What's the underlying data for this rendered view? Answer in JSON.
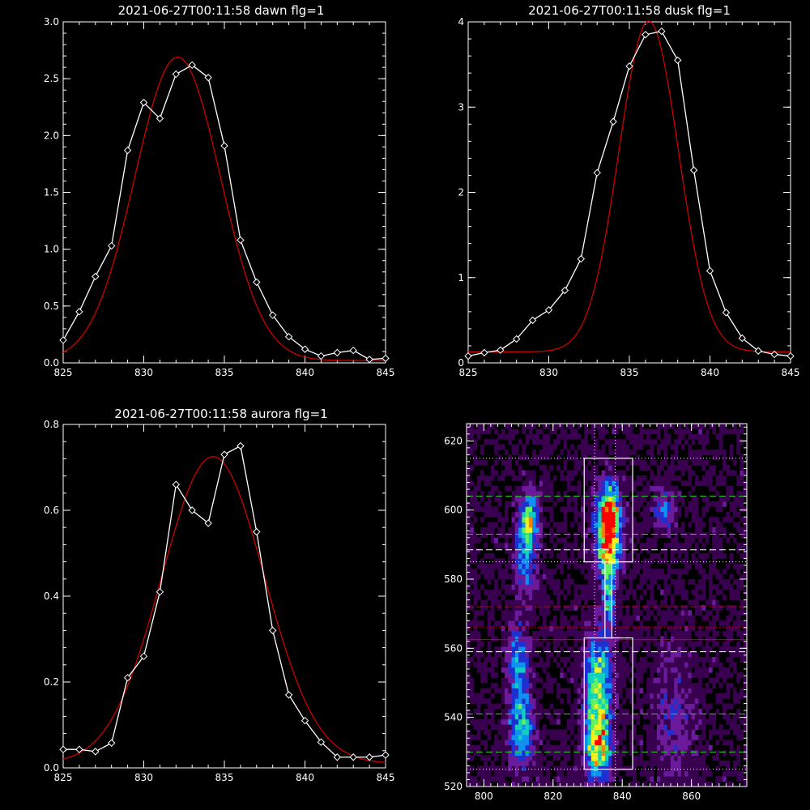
{
  "chart_data": [
    {
      "type": "line",
      "title": "2021-06-27T00:11:58 dawn flg=1",
      "xlabel": "",
      "ylabel": "",
      "xlim": [
        825,
        845
      ],
      "ylim": [
        0,
        3.0
      ],
      "xticks": [
        825,
        830,
        835,
        840,
        845
      ],
      "yticks": [
        0.0,
        0.5,
        1.0,
        1.5,
        2.0,
        2.5,
        3.0
      ],
      "ytick_labels": [
        "0.0",
        "0.5",
        "1.0",
        "1.5",
        "2.0",
        "2.5",
        "3.0"
      ],
      "grid": false,
      "series": [
        {
          "name": "",
          "color": "#ffffff",
          "marker": "diamond",
          "x": [
            825,
            826,
            827,
            828,
            829,
            830,
            831,
            832,
            833,
            834,
            835,
            836,
            837,
            838,
            839,
            840,
            841,
            842,
            843,
            844,
            845
          ],
          "values": [
            0.2,
            0.45,
            0.76,
            1.03,
            1.87,
            2.29,
            2.15,
            2.54,
            2.62,
            2.51,
            1.91,
            1.08,
            0.71,
            0.42,
            0.23,
            0.12,
            0.06,
            0.09,
            0.11,
            0.03,
            0.04
          ]
        },
        {
          "name": "",
          "color": "#cc0000",
          "marker": "none",
          "fit": "gaussian",
          "amplitude": 2.67,
          "center": 832.1,
          "sigma": 2.65,
          "offset": 0.02
        }
      ]
    },
    {
      "type": "line",
      "title": "2021-06-27T00:11:58 dusk flg=1",
      "xlabel": "",
      "ylabel": "",
      "xlim": [
        825,
        845
      ],
      "ylim": [
        0,
        4.0
      ],
      "xticks": [
        825,
        830,
        835,
        840,
        845
      ],
      "yticks": [
        0,
        1,
        2,
        3,
        4
      ],
      "ytick_labels": [
        "0",
        "1",
        "2",
        "3",
        "4"
      ],
      "grid": false,
      "series": [
        {
          "name": "",
          "color": "#ffffff",
          "marker": "diamond",
          "x": [
            825,
            826,
            827,
            828,
            829,
            830,
            831,
            832,
            833,
            834,
            835,
            836,
            837,
            838,
            839,
            840,
            841,
            842,
            843,
            844,
            845
          ],
          "values": [
            0.08,
            0.12,
            0.15,
            0.28,
            0.5,
            0.62,
            0.85,
            1.22,
            2.23,
            2.83,
            3.48,
            3.85,
            3.89,
            3.55,
            2.26,
            1.08,
            0.59,
            0.29,
            0.14,
            0.1,
            0.08
          ]
        },
        {
          "name": "",
          "color": "#cc0000",
          "marker": "none",
          "fit": "gaussian",
          "amplitude": 3.88,
          "center": 836.2,
          "sigma": 1.85,
          "offset": 0.13
        }
      ]
    },
    {
      "type": "line",
      "title": "2021-06-27T00:11:58 aurora flg=1",
      "xlabel": "",
      "ylabel": "",
      "xlim": [
        825,
        845
      ],
      "ylim": [
        0,
        0.8
      ],
      "xticks": [
        825,
        830,
        835,
        840,
        845
      ],
      "yticks": [
        0.0,
        0.2,
        0.4,
        0.6,
        0.8
      ],
      "ytick_labels": [
        "0.0",
        "0.2",
        "0.4",
        "0.6",
        "0.8"
      ],
      "grid": false,
      "series": [
        {
          "name": "",
          "color": "#ffffff",
          "marker": "diamond",
          "x": [
            825,
            826,
            827,
            828,
            829,
            830,
            831,
            832,
            833,
            834,
            835,
            836,
            837,
            838,
            839,
            840,
            841,
            842,
            843,
            844,
            845
          ],
          "values": [
            0.043,
            0.043,
            0.038,
            0.058,
            0.21,
            0.26,
            0.41,
            0.66,
            0.6,
            0.57,
            0.73,
            0.75,
            0.55,
            0.32,
            0.17,
            0.11,
            0.06,
            0.025,
            0.025,
            0.025,
            0.03
          ]
        },
        {
          "name": "",
          "color": "#cc0000",
          "marker": "none",
          "fit": "gaussian",
          "amplitude": 0.715,
          "center": 834.3,
          "sigma": 3.2,
          "offset": 0.01
        }
      ]
    },
    {
      "type": "heatmap",
      "title": "",
      "xlabel": "",
      "ylabel": "",
      "xlim": [
        795,
        876
      ],
      "ylim": [
        520,
        625
      ],
      "xticks": [
        800,
        820,
        840,
        860
      ],
      "yticks": [
        520,
        540,
        560,
        580,
        600,
        620
      ],
      "grid": false,
      "colormap": [
        "#000000",
        "#3a0050",
        "#6a1a9a",
        "#2030d0",
        "#1090f0",
        "#10d0c0",
        "#60f060",
        "#f0f020",
        "#ff8000",
        "#ff0000"
      ],
      "intensity_sources": [
        {
          "x": 836,
          "y": 598,
          "sx": 2.2,
          "sy": 6,
          "amp": 1.0
        },
        {
          "x": 836,
          "y": 588,
          "sx": 2.2,
          "sy": 5,
          "amp": 0.55
        },
        {
          "x": 836,
          "y": 575,
          "sx": 1.4,
          "sy": 7,
          "amp": 0.4
        },
        {
          "x": 833,
          "y": 552,
          "sx": 2.5,
          "sy": 8,
          "amp": 0.55
        },
        {
          "x": 833,
          "y": 533,
          "sx": 2.5,
          "sy": 7,
          "amp": 0.75
        },
        {
          "x": 813,
          "y": 598,
          "sx": 2.0,
          "sy": 5,
          "amp": 0.55
        },
        {
          "x": 812,
          "y": 585,
          "sx": 2.0,
          "sy": 7,
          "amp": 0.3
        },
        {
          "x": 810,
          "y": 555,
          "sx": 2.0,
          "sy": 8,
          "amp": 0.35
        },
        {
          "x": 811,
          "y": 536,
          "sx": 2.5,
          "sy": 7,
          "amp": 0.4
        },
        {
          "x": 852,
          "y": 600,
          "sx": 2.0,
          "sy": 4,
          "amp": 0.3
        },
        {
          "x": 855,
          "y": 540,
          "sx": 4.0,
          "sy": 15,
          "amp": 0.15
        }
      ],
      "boxes": [
        {
          "x": [
            829,
            843
          ],
          "y": [
            585,
            615
          ],
          "color": "#ffffff"
        },
        {
          "x": [
            829,
            843
          ],
          "y": [
            525,
            563
          ],
          "color": "#ffffff"
        },
        {
          "x": [
            835,
            837
          ],
          "y": [
            563,
            585
          ],
          "color": "#ffffff"
        }
      ],
      "hlines": [
        {
          "y": 615,
          "color": "#ffffff",
          "style": "dotted"
        },
        {
          "y": 604,
          "color": "#30d030",
          "style": "dashed"
        },
        {
          "y": 593,
          "color": "#30d030",
          "style": "dashed"
        },
        {
          "y": 588.5,
          "color": "#ffffff",
          "style": "dashed"
        },
        {
          "y": 585,
          "color": "#ffffff",
          "style": "dotted"
        },
        {
          "y": 572,
          "color": "#cc0000",
          "style": "dashed"
        },
        {
          "y": 566,
          "color": "#cc0000",
          "style": "dotted"
        },
        {
          "y": 562.5,
          "color": "#cc0000",
          "style": "solid"
        },
        {
          "y": 559,
          "color": "#ffffff",
          "style": "dashed"
        },
        {
          "y": 541,
          "color": "#30d030",
          "style": "dashed"
        },
        {
          "y": 530,
          "color": "#30d030",
          "style": "dashed"
        },
        {
          "y": 525,
          "color": "#ffffff",
          "style": "dotted"
        }
      ],
      "vlines": [
        {
          "x": 832,
          "color": "#ffffff",
          "style": "dotted"
        },
        {
          "x": 838,
          "color": "#ffffff",
          "style": "dotted"
        }
      ]
    }
  ]
}
